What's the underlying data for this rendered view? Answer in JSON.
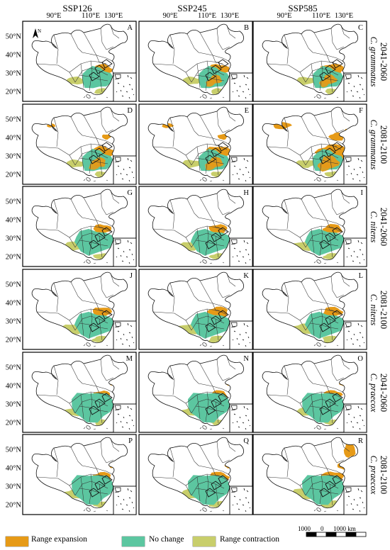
{
  "columns": [
    {
      "label": "SSP126"
    },
    {
      "label": "SSP245"
    },
    {
      "label": "SSP585"
    }
  ],
  "lon_ticks": [
    "90°E",
    "110°E",
    "130°E"
  ],
  "lat_ticks": [
    "50°N",
    "40°N",
    "30°N",
    "20°N"
  ],
  "rows": [
    {
      "period": "2041-2060",
      "species": "C. grammatus",
      "panels": [
        "A",
        "B",
        "C"
      ],
      "expansion": [
        0.3,
        0.35,
        0.45
      ],
      "shift": [
        0,
        0,
        0
      ],
      "extra_north": [
        0,
        0,
        0
      ],
      "west_contraction": [
        0.1,
        0.1,
        0.1
      ],
      "northeast": [
        0,
        0,
        0
      ],
      "northwest_spot": [
        0,
        0,
        0
      ]
    },
    {
      "period": "2081-2100",
      "species": "C. grammatus",
      "panels": [
        "D",
        "E",
        "F"
      ],
      "expansion": [
        0.45,
        0.55,
        0.85
      ],
      "shift": [
        0,
        0,
        0
      ],
      "extra_north": [
        0.2,
        0.3,
        0.9
      ],
      "west_contraction": [
        0.1,
        0.1,
        0.1
      ],
      "northeast": [
        0,
        0,
        0
      ],
      "northwest_spot": [
        0.3,
        0.5,
        1
      ]
    },
    {
      "period": "2041-2060",
      "species": "C. nitens",
      "panels": [
        "G",
        "H",
        "I"
      ],
      "expansion": [
        0.2,
        0.2,
        0.22
      ],
      "shift": [
        1,
        1,
        1
      ],
      "extra_north": [
        0,
        0,
        0
      ],
      "west_contraction": [
        0.25,
        0.25,
        0.35
      ],
      "northeast": [
        0,
        0,
        0
      ],
      "northwest_spot": [
        0,
        0,
        0
      ]
    },
    {
      "period": "2081-2100",
      "species": "C. nitens",
      "panels": [
        "J",
        "K",
        "L"
      ],
      "expansion": [
        0.25,
        0.3,
        0.25
      ],
      "shift": [
        1,
        1,
        1
      ],
      "extra_north": [
        0,
        0,
        0
      ],
      "west_contraction": [
        0.45,
        0.5,
        0.6
      ],
      "northeast": [
        0,
        0,
        0
      ],
      "northwest_spot": [
        0,
        0,
        0
      ]
    },
    {
      "period": "2041-2060",
      "species": "C. praecox",
      "panels": [
        "M",
        "N",
        "O"
      ],
      "expansion": [
        0.1,
        0.15,
        0.2
      ],
      "shift": [
        2,
        2,
        2
      ],
      "extra_north": [
        0,
        0,
        0
      ],
      "west_contraction": [
        0.15,
        0.15,
        0.2
      ],
      "northeast": [
        0.2,
        0.3,
        0.4
      ],
      "northwest_spot": [
        0,
        0,
        0
      ]
    },
    {
      "period": "2081-2100",
      "species": "C. praecox",
      "panels": [
        "P",
        "Q",
        "R"
      ],
      "expansion": [
        0.25,
        0.3,
        0.4
      ],
      "shift": [
        2,
        2,
        2
      ],
      "extra_north": [
        0,
        0,
        0
      ],
      "west_contraction": [
        0.35,
        0.4,
        0.7
      ],
      "northeast": [
        0.4,
        0.5,
        1.0
      ],
      "northwest_spot": [
        0,
        0,
        0
      ]
    }
  ],
  "colors": {
    "range_expansion": "#E69A17",
    "no_change": "#5CC6A0",
    "range_contraction": "#C8CE6B",
    "outline": "#111111"
  },
  "legend": [
    {
      "label": "Range expansion",
      "color": "#E69A17"
    },
    {
      "label": "No change",
      "color": "#5CC6A0"
    },
    {
      "label": "Range contraction",
      "color": "#C8CE6B"
    }
  ],
  "scale_bar": {
    "labels": [
      "1000",
      "0",
      "1000 km"
    ]
  },
  "north_arrow": "N"
}
